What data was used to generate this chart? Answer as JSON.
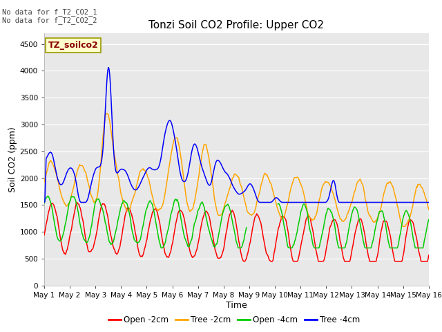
{
  "title": "Tonzi Soil CO2 Profile: Upper CO2",
  "xlabel": "Time",
  "ylabel": "Soil CO2 (ppm)",
  "top_left_text": "No data for f_T2_CO2_1\nNo data for f_T2_CO2_2",
  "legend_label_text": "TZ_soilco2",
  "legend_entries": [
    "Open -2cm",
    "Tree -2cm",
    "Open -4cm",
    "Tree -4cm"
  ],
  "legend_colors": [
    "#ff0000",
    "#ffa500",
    "#00cc00",
    "#0000ff"
  ],
  "ylim": [
    0,
    4700
  ],
  "yticks": [
    0,
    500,
    1000,
    1500,
    2000,
    2500,
    3000,
    3500,
    4000,
    4500
  ],
  "x_tick_labels": [
    "May 1",
    "May 2",
    "May 3",
    "May 4",
    "May 5",
    "May 6",
    "May 7",
    "May 8",
    "May 9",
    "May 10",
    "May 11",
    "May 12",
    "May 13",
    "May 14",
    "May 15",
    "May 16"
  ],
  "num_points": 600,
  "background_color": "#e8e8e8",
  "title_fontsize": 11,
  "axis_label_fontsize": 9,
  "tick_fontsize": 7.5,
  "line_width": 1.1
}
